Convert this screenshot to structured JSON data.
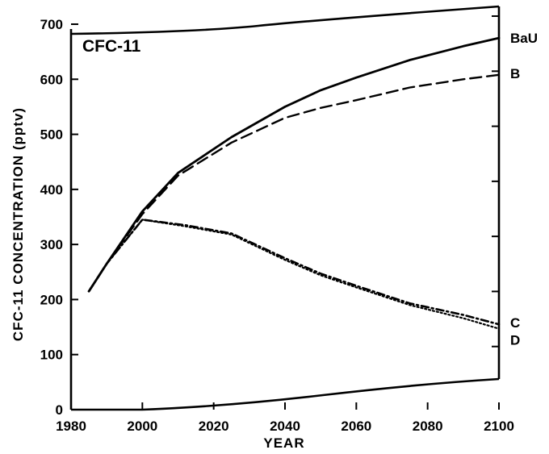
{
  "chart_data": {
    "type": "line",
    "title": "CFC-11",
    "xlabel": "YEAR",
    "ylabel": "CFC-11  CONCENTRATION  (pptv)",
    "xlim": [
      1980,
      2100
    ],
    "ylim": [
      0,
      700
    ],
    "x_ticks": [
      1980,
      2000,
      2020,
      2040,
      2060,
      2080,
      2100
    ],
    "y_ticks": [
      0,
      100,
      200,
      300,
      400,
      500,
      600,
      700
    ],
    "grid": false,
    "series": [
      {
        "name": "BaU",
        "style": "solid",
        "points": [
          [
            1985,
            215
          ],
          [
            1990,
            265
          ],
          [
            2000,
            360
          ],
          [
            2010,
            430
          ],
          [
            2025,
            495
          ],
          [
            2040,
            550
          ],
          [
            2050,
            580
          ],
          [
            2060,
            603
          ],
          [
            2075,
            635
          ],
          [
            2090,
            660
          ],
          [
            2100,
            675
          ]
        ]
      },
      {
        "name": "B",
        "style": "dashed",
        "points": [
          [
            1985,
            215
          ],
          [
            1990,
            265
          ],
          [
            2000,
            355
          ],
          [
            2010,
            425
          ],
          [
            2025,
            485
          ],
          [
            2040,
            530
          ],
          [
            2050,
            548
          ],
          [
            2060,
            562
          ],
          [
            2075,
            585
          ],
          [
            2090,
            600
          ],
          [
            2100,
            608
          ]
        ]
      },
      {
        "name": "C",
        "style": "dash-dot",
        "points": [
          [
            1985,
            215
          ],
          [
            1990,
            265
          ],
          [
            2000,
            345
          ],
          [
            2012,
            335
          ],
          [
            2025,
            320
          ],
          [
            2040,
            275
          ],
          [
            2050,
            247
          ],
          [
            2060,
            225
          ],
          [
            2075,
            193
          ],
          [
            2090,
            172
          ],
          [
            2100,
            155
          ]
        ]
      },
      {
        "name": "D",
        "style": "dotted",
        "points": [
          [
            1985,
            215
          ],
          [
            1990,
            265
          ],
          [
            2000,
            345
          ],
          [
            2012,
            333
          ],
          [
            2025,
            318
          ],
          [
            2040,
            272
          ],
          [
            2050,
            244
          ],
          [
            2060,
            222
          ],
          [
            2075,
            190
          ],
          [
            2090,
            166
          ],
          [
            2100,
            147
          ]
        ]
      }
    ]
  }
}
